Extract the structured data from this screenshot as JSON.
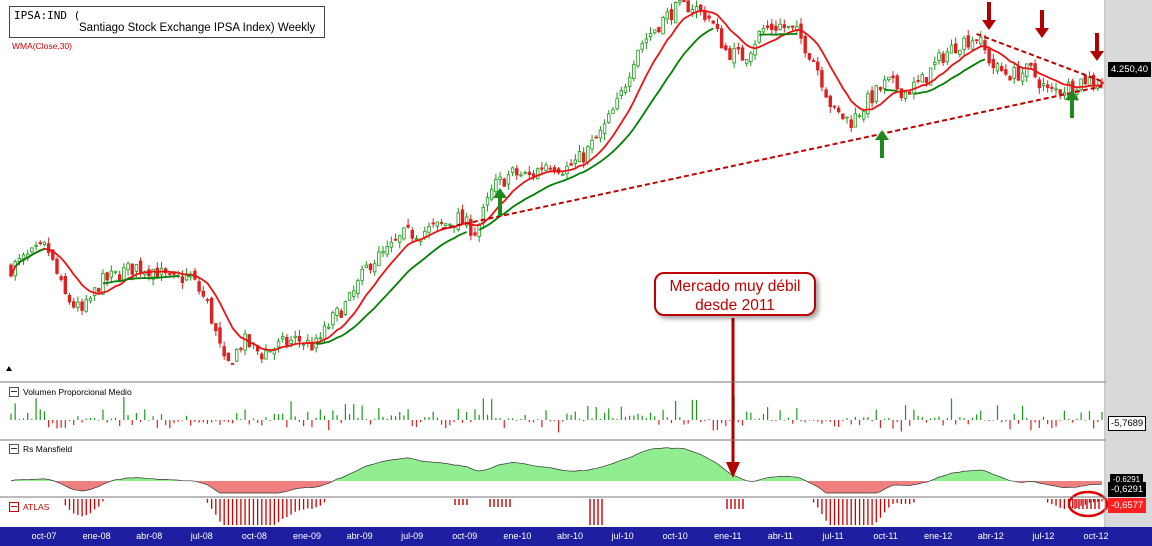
{
  "header": {
    "ticker": "IPSA:IND (",
    "name": "Santiago Stock Exchange IPSA Index) Weekly",
    "indicator": "WMA(Close,30)"
  },
  "panels": {
    "volume_label": "Volumen Proporcional Medio",
    "mansfield_label": "Rs Mansfield",
    "atlas_label": "ATLAS"
  },
  "callout": {
    "line1": "Mercado muy débil",
    "line2": "desde 2011"
  },
  "right_axis": {
    "price": "4.250,40",
    "volume": "-5,7689",
    "mansfield": "-0,6291",
    "mansfield_hidden": "-0,6291",
    "atlas": "-0,6577"
  },
  "colors": {
    "up": "#1a9a1a",
    "down": "#dd2020",
    "wma": "#008000",
    "ma_red": "#ee1111",
    "trendline": "#c00000",
    "arrow_green": "#1e8a1e",
    "arrow_red": "#b00000",
    "mansfield_pos": "#90ee90",
    "mansfield_neg": "#f08080",
    "atlas": "#cc0000",
    "axis_bar": "#1e1ea0"
  },
  "chart_data": {
    "type": "candlestick",
    "x_ticks": [
      "oct-07",
      "ene-08",
      "abr-08",
      "jul-08",
      "oct-08",
      "ene-09",
      "abr-09",
      "jul-09",
      "oct-09",
      "ene-10",
      "abr-10",
      "jul-10",
      "oct-10",
      "ene-11",
      "abr-11",
      "jul-11",
      "oct-11",
      "ene-12",
      "abr-12",
      "jul-12",
      "oct-12"
    ],
    "price_anchors": [
      [
        "oct-07",
        2970
      ],
      [
        "nov-07",
        3050
      ],
      [
        "dic-07",
        3120
      ],
      [
        "ene-08",
        2780
      ],
      [
        "feb-08",
        2660
      ],
      [
        "mar-08",
        2870
      ],
      [
        "abr-08",
        2930
      ],
      [
        "may-08",
        2980
      ],
      [
        "jun-08",
        2960
      ],
      [
        "jul-08",
        2880
      ],
      [
        "ago-08",
        2920
      ],
      [
        "sep-08",
        2720
      ],
      [
        "oct-08",
        2280
      ],
      [
        "nov-08",
        2470
      ],
      [
        "dic-08",
        2380
      ],
      [
        "ene-09",
        2440
      ],
      [
        "feb-09",
        2480
      ],
      [
        "mar-09",
        2430
      ],
      [
        "abr-09",
        2620
      ],
      [
        "may-09",
        2760
      ],
      [
        "jun-09",
        3000
      ],
      [
        "jul-09",
        3080
      ],
      [
        "ago-09",
        3200
      ],
      [
        "sep-09",
        3220
      ],
      [
        "oct-09",
        3260
      ],
      [
        "nov-09",
        3310
      ],
      [
        "dic-09",
        3220
      ],
      [
        "ene-10",
        3530
      ],
      [
        "feb-10",
        3620
      ],
      [
        "mar-10",
        3600
      ],
      [
        "abr-10",
        3700
      ],
      [
        "may-10",
        3650
      ],
      [
        "jun-10",
        3740
      ],
      [
        "jul-10",
        3900
      ],
      [
        "ago-10",
        4120
      ],
      [
        "sep-10",
        4480
      ],
      [
        "oct-10",
        4620
      ],
      [
        "nov-10",
        4740
      ],
      [
        "dic-10",
        4780
      ],
      [
        "ene-11",
        4700
      ],
      [
        "feb-11",
        4460
      ],
      [
        "mar-11",
        4420
      ],
      [
        "abr-11",
        4610
      ],
      [
        "may-11",
        4640
      ],
      [
        "jun-11",
        4580
      ],
      [
        "jul-11",
        4380
      ],
      [
        "ago-11",
        4040
      ],
      [
        "sep-11",
        3980
      ],
      [
        "oct-11",
        4130
      ],
      [
        "nov-11",
        4250
      ],
      [
        "dic-11",
        4180
      ],
      [
        "ene-12",
        4260
      ],
      [
        "feb-12",
        4420
      ],
      [
        "mar-12",
        4520
      ],
      [
        "abr-12",
        4560
      ],
      [
        "may-12",
        4340
      ],
      [
        "jun-12",
        4300
      ],
      [
        "jul-12",
        4330
      ],
      [
        "ago-12",
        4180
      ],
      [
        "sep-12",
        4210
      ],
      [
        "oct-12",
        4270
      ],
      [
        "nov-12",
        4250
      ]
    ],
    "y_range": [
      2200,
      4800
    ],
    "wma_period": 30,
    "last_price": 4250.4,
    "annotations": [
      "support trendline oct-09 to nov-12",
      "resistance trendline abr-12 to nov-12"
    ]
  }
}
